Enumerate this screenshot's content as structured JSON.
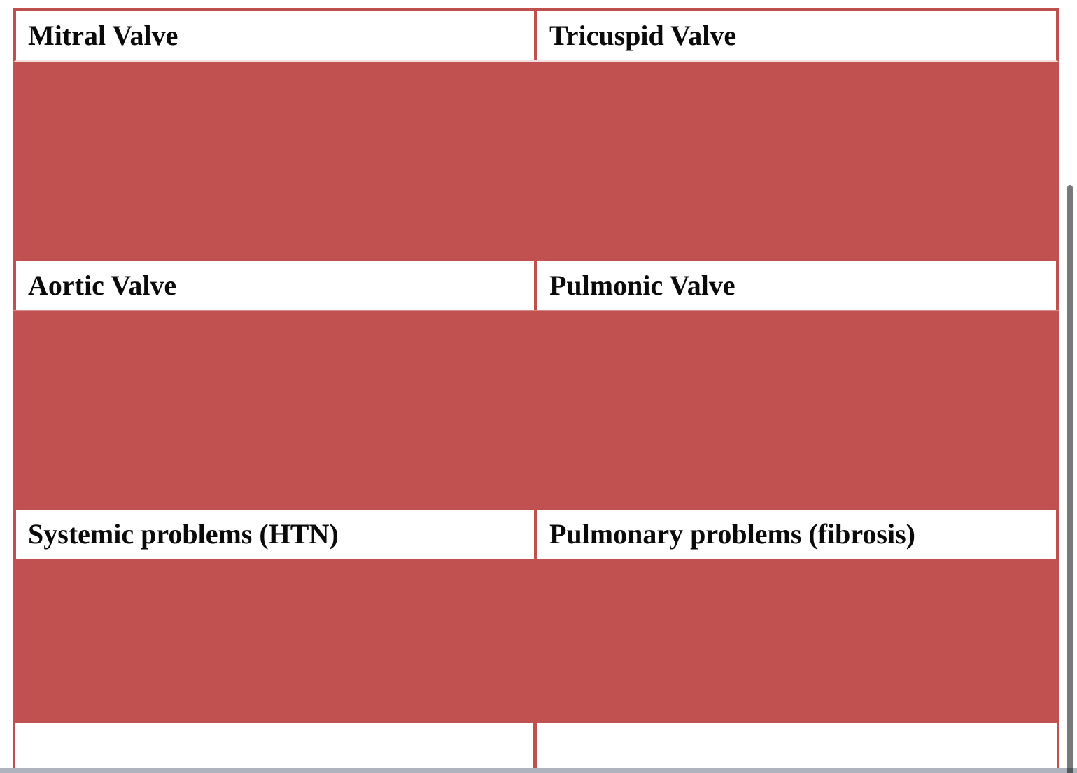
{
  "page": {
    "background_color": "#ffffff"
  },
  "table": {
    "band_color": "#c15150",
    "border_color": "#c0504d",
    "text_color": "#0a0a0a",
    "label_rows": [
      {
        "left": "Mitral Valve",
        "right": "Tricuspid Valve"
      },
      {
        "left": "Aortic Valve",
        "right": "Pulmonic Valve"
      },
      {
        "left": "Systemic problems (HTN)",
        "right": "Pulmonary problems (fibrosis)"
      },
      {
        "left": "",
        "right": ""
      }
    ]
  },
  "scrollbars": {
    "vertical_thumb_color": "#787878",
    "horizontal_bar_color": "#aeb3bd",
    "corner_color": "#53565b"
  }
}
